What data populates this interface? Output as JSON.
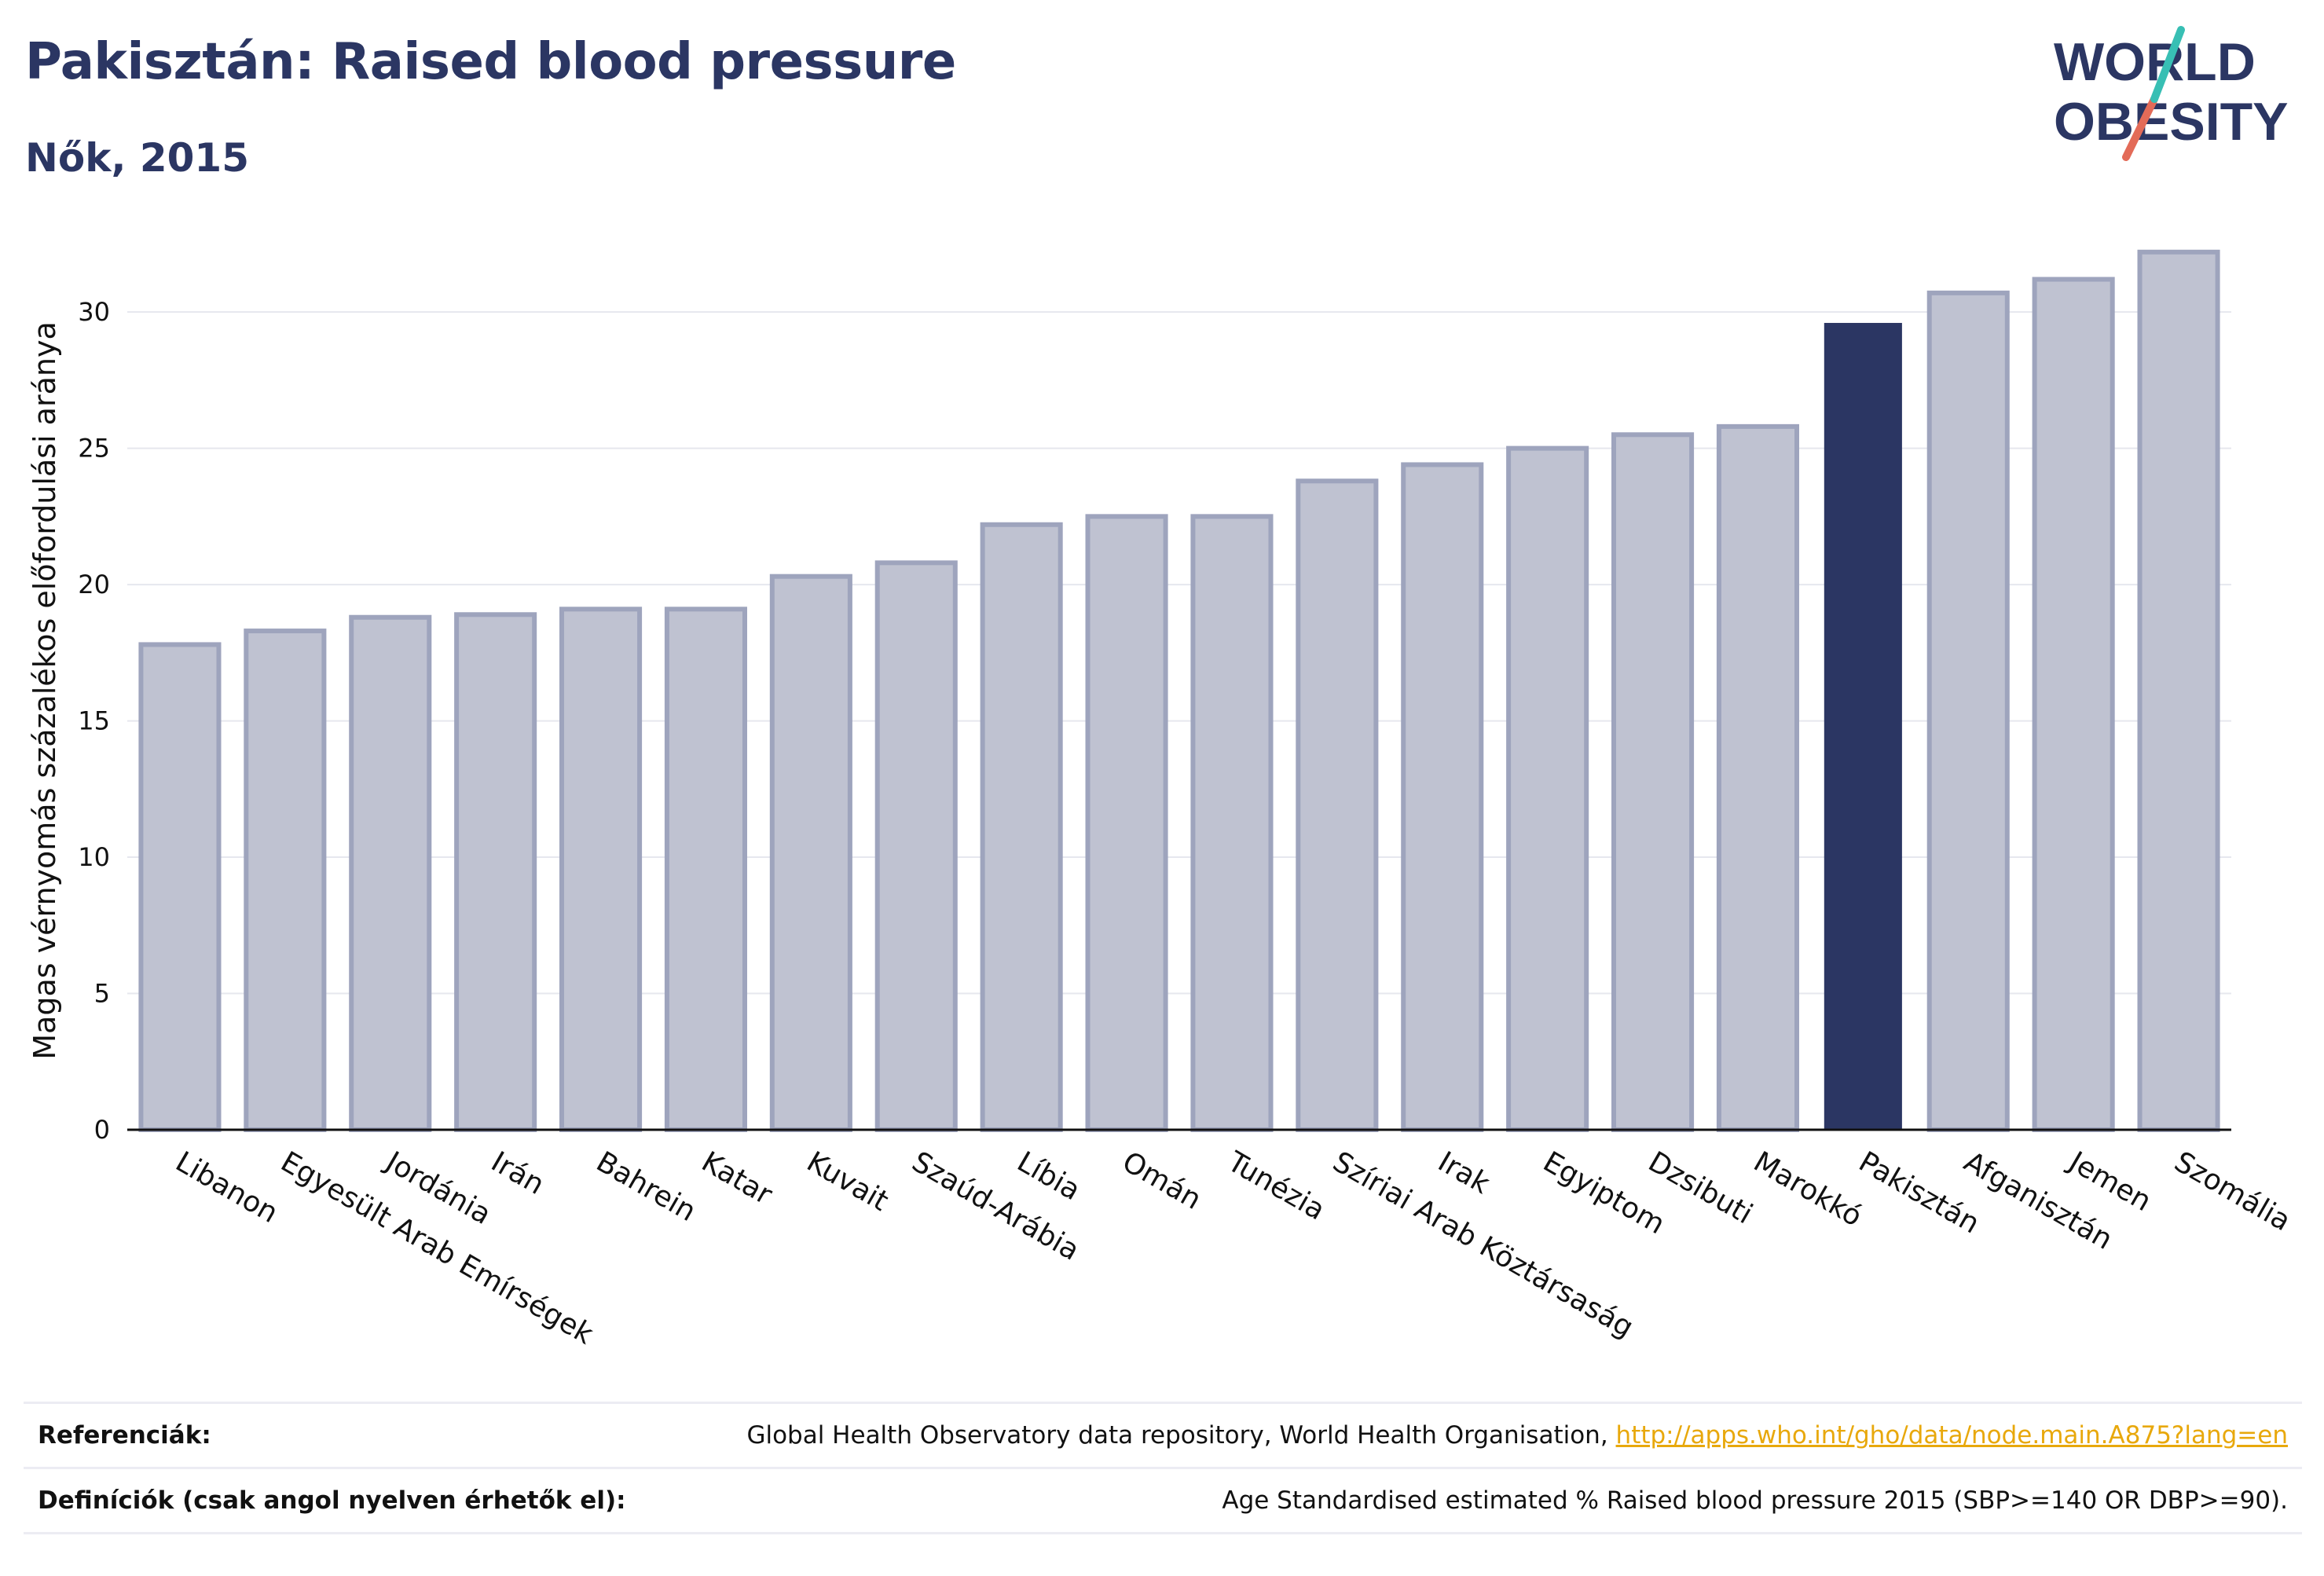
{
  "title": "Pakisztán: Raised blood pressure",
  "subtitle": "Nők, 2015",
  "logo": {
    "line1": "WORLD",
    "line2": "OBESITY",
    "text_color": "#2b3663",
    "slash_top_color": "#38bfb4",
    "slash_bottom_color": "#e36b58"
  },
  "colors": {
    "highlight": "#2b3663",
    "bar_fill": "#bfc2d1",
    "bar_stroke": "#9ea4bd",
    "grid": "#e6e7ee",
    "axis": "#111111"
  },
  "chart_data": {
    "type": "bar",
    "title": "Pakisztán: Raised blood pressure",
    "subtitle": "Nők, 2015",
    "xlabel": "",
    "ylabel": "Magas vérnyomás százalékos előfordulási aránya",
    "ylim": [
      0,
      32.8
    ],
    "yticks": [
      0,
      5,
      10,
      15,
      20,
      25,
      30
    ],
    "grid": true,
    "highlight": "Pakisztán",
    "categories": [
      "Libanon",
      "Egyesült Arab Emírségek",
      "Jordánia",
      "Irán",
      "Bahrein",
      "Katar",
      "Kuvait",
      "Szaúd-Arábia",
      "Líbia",
      "Omán",
      "Tunézia",
      "Szíriai Arab Köztársaság",
      "Irak",
      "Egyiptom",
      "Dzsibuti",
      "Marokkó",
      "Pakisztán",
      "Afganisztán",
      "Jemen",
      "Szomália"
    ],
    "values": [
      17.8,
      18.3,
      18.8,
      18.9,
      19.1,
      19.1,
      20.3,
      20.8,
      22.2,
      22.5,
      22.5,
      23.8,
      24.4,
      25.0,
      25.5,
      25.8,
      29.6,
      30.7,
      31.2,
      32.2
    ]
  },
  "footer": {
    "references_label": "Referenciák:",
    "references_text": "Global Health Observatory data repository, World Health Organisation, ",
    "references_link": "http://apps.who.int/gho/data/node.main.A875?lang=en",
    "definitions_label": "Definíciók (csak angol nyelven érhetők el):",
    "definitions_text": "Age Standardised estimated % Raised blood pressure 2015 (SBP>=140 OR DBP>=90)."
  }
}
